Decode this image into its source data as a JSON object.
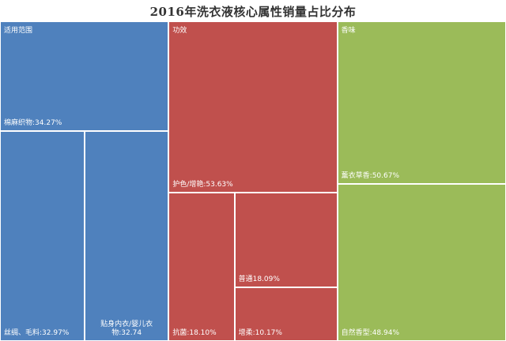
{
  "chart_data": {
    "type": "treemap",
    "title": "2016年洗衣液核心属性销量占比分布",
    "colors": {
      "适用范围": "#4f81bd",
      "功效": "#c0504d",
      "香味": "#9bbb59"
    },
    "groups": [
      {
        "name": "适用范围",
        "items": [
          {
            "name": "棉麻织物",
            "label": "棉麻织物:34.27%",
            "value": 34.27
          },
          {
            "name": "丝绸、毛料",
            "label": "丝绸、毛料:32.97%",
            "value": 32.97
          },
          {
            "name": "贴身内衣/婴儿衣物",
            "label": "贴身内衣/婴儿衣物:32.74",
            "value": 32.74
          }
        ]
      },
      {
        "name": "功效",
        "items": [
          {
            "name": "护色/增艳",
            "label": "护色/增艳:53.63%",
            "value": 53.63
          },
          {
            "name": "抗菌",
            "label": "抗菌:18.10%",
            "value": 18.1
          },
          {
            "name": "普通",
            "label": "普通18.09%",
            "value": 18.09
          },
          {
            "name": "增柔",
            "label": "增柔:10.17%",
            "value": 10.17
          }
        ]
      },
      {
        "name": "香味",
        "items": [
          {
            "name": "薰衣草香",
            "label": "薰衣草香:50.67%",
            "value": 50.67
          },
          {
            "name": "自然香型",
            "label": "自然香型:48.94%",
            "value": 48.94
          }
        ]
      }
    ]
  }
}
